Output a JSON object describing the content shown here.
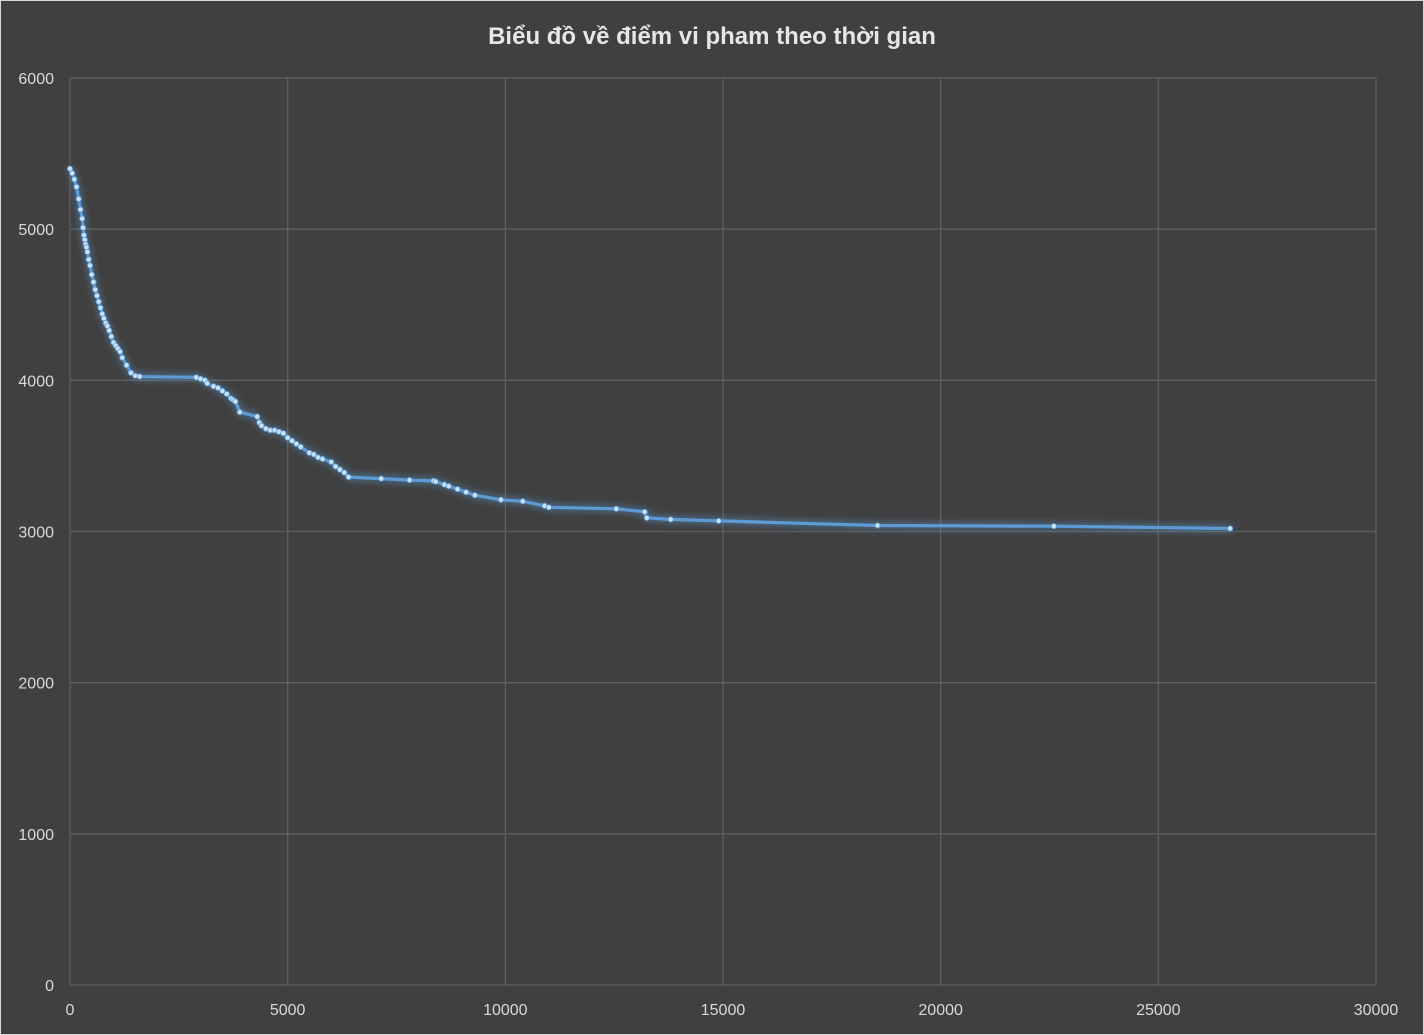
{
  "chart_data": {
    "type": "scatter",
    "title": "Biểu đồ về điểm vi pham theo thời gian",
    "xlabel": "",
    "ylabel": "",
    "xlim": [
      0,
      30000
    ],
    "ylim": [
      0,
      6000
    ],
    "x_ticks": [
      "0",
      "5000",
      "10000",
      "15000",
      "20000",
      "25000",
      "30000"
    ],
    "y_ticks": [
      "0",
      "1000",
      "2000",
      "3000",
      "4000",
      "5000",
      "6000"
    ],
    "grid": true,
    "legend": "none",
    "line_color": "#5b9bd5",
    "marker_color": "#c9e2f8",
    "series": [
      {
        "x": [
          0,
          50,
          100,
          150,
          200,
          240,
          280,
          300,
          320,
          340,
          360,
          380,
          400,
          430,
          460,
          500,
          540,
          580,
          620,
          660,
          700,
          740,
          780,
          820,
          860,
          900,
          950,
          1000,
          1050,
          1100,
          1150,
          1200,
          1300,
          1400,
          1500,
          1600,
          2900,
          3000,
          3100,
          3150,
          3300,
          3400,
          3500,
          3600,
          3700,
          3750,
          3800,
          3900,
          4300,
          4350,
          4400,
          4500,
          4600,
          4700,
          4800,
          4900,
          5000,
          5100,
          5200,
          5300,
          5500,
          5600,
          5700,
          5800,
          6000,
          6100,
          6200,
          6300,
          6400,
          7150,
          7800,
          8350,
          8400,
          8600,
          8700,
          8900,
          9100,
          9300,
          9900,
          10400,
          10900,
          11000,
          12550,
          13200,
          13250,
          13800,
          14900,
          18550,
          22600,
          26650
        ],
        "y": [
          5400,
          5370,
          5330,
          5280,
          5200,
          5130,
          5070,
          5010,
          4960,
          4930,
          4900,
          4880,
          4850,
          4800,
          4760,
          4700,
          4650,
          4600,
          4560,
          4520,
          4480,
          4440,
          4410,
          4380,
          4360,
          4330,
          4290,
          4250,
          4230,
          4210,
          4190,
          4150,
          4100,
          4050,
          4030,
          4025,
          4020,
          4010,
          4000,
          3980,
          3960,
          3950,
          3930,
          3910,
          3880,
          3870,
          3860,
          3790,
          3760,
          3720,
          3700,
          3680,
          3670,
          3670,
          3660,
          3650,
          3620,
          3600,
          3580,
          3560,
          3520,
          3510,
          3490,
          3480,
          3460,
          3430,
          3410,
          3390,
          3360,
          3350,
          3340,
          3335,
          3330,
          3310,
          3300,
          3280,
          3260,
          3240,
          3210,
          3200,
          3170,
          3160,
          3150,
          3130,
          3090,
          3080,
          3070,
          3040,
          3035,
          3020
        ]
      }
    ]
  }
}
